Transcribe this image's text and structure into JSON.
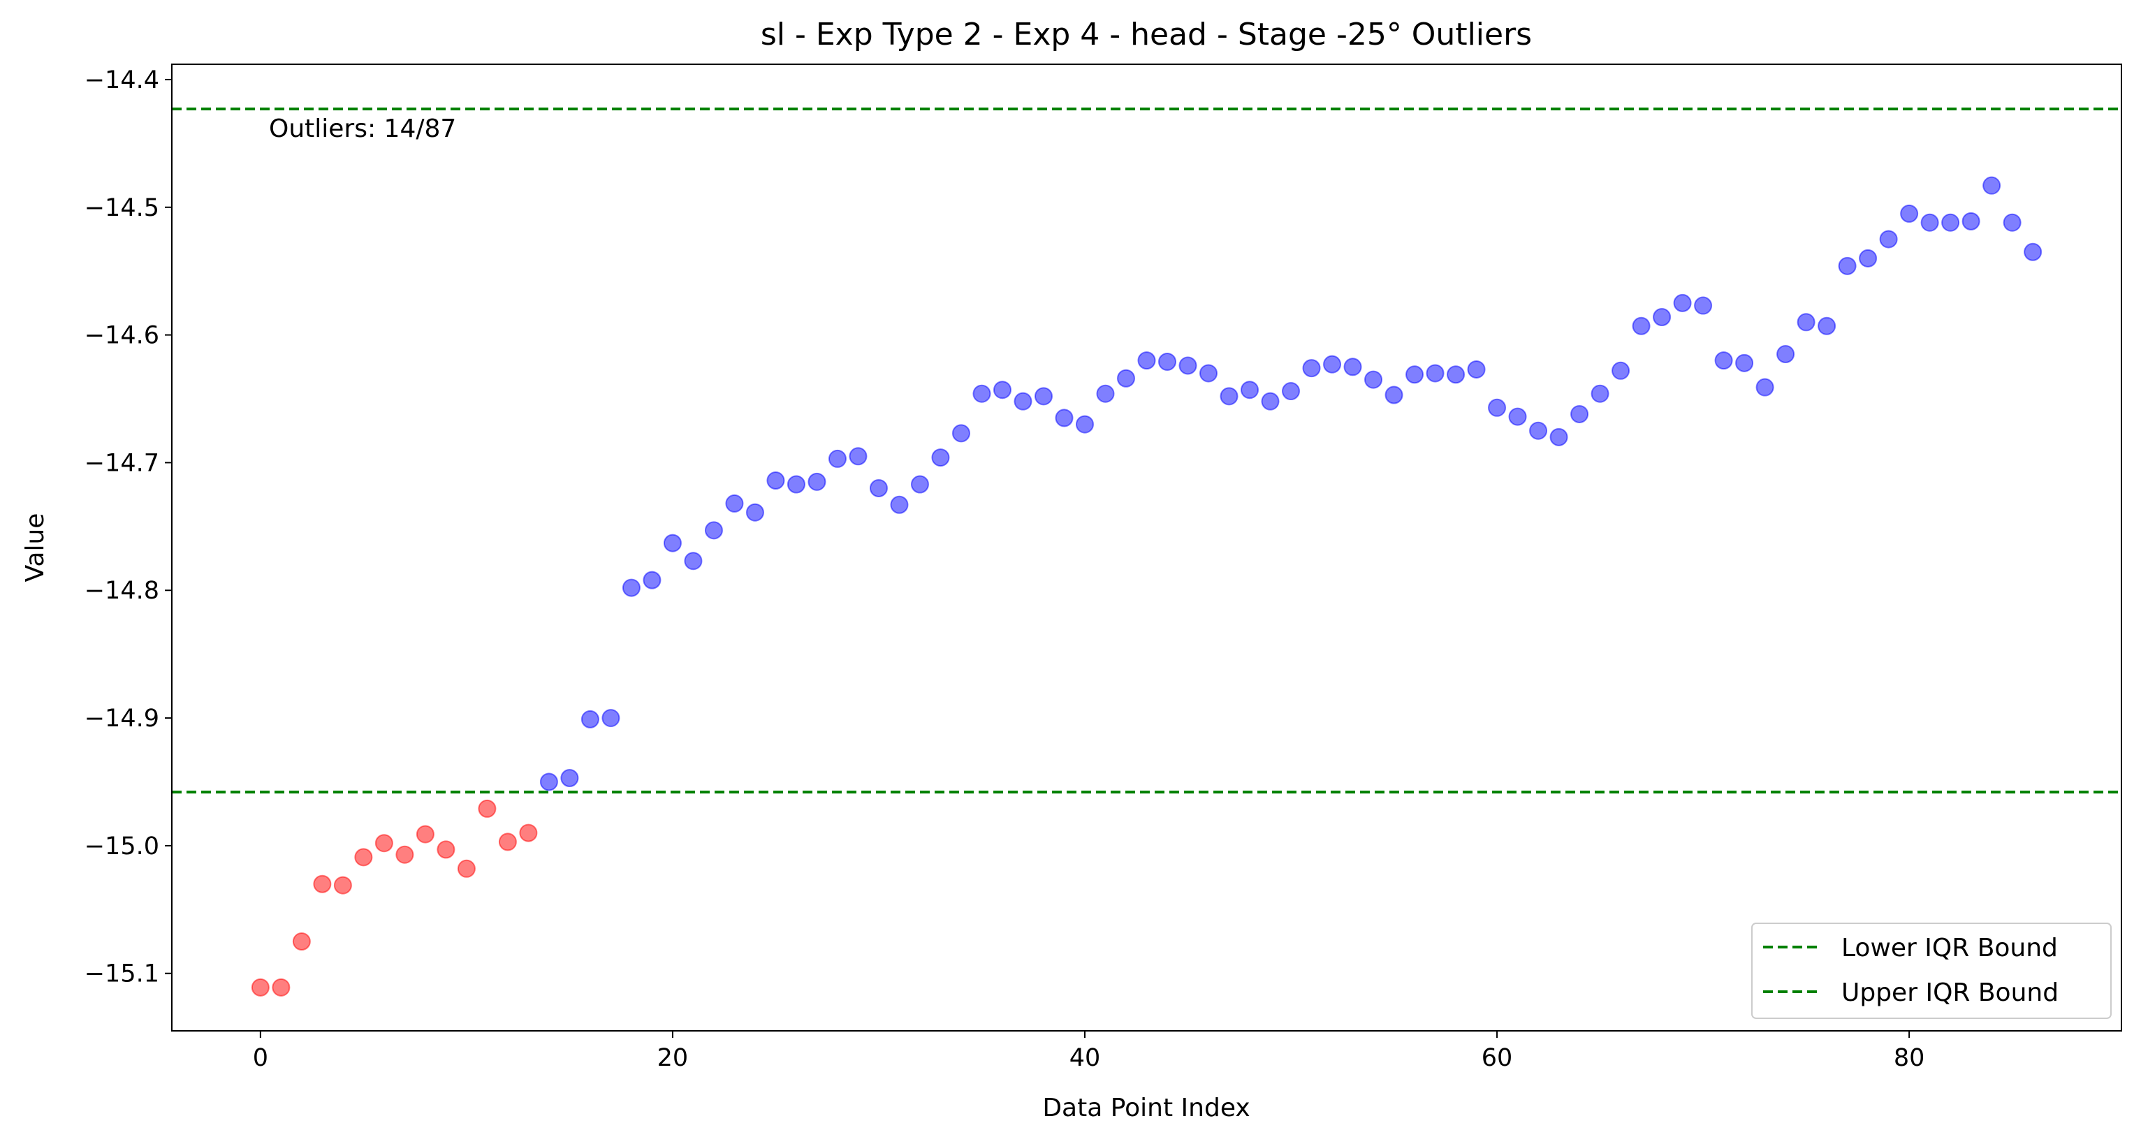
{
  "chart_data": {
    "type": "scatter",
    "title": "sl - Exp Type 2 - Exp 4 - head - Stage -25° Outliers",
    "xlabel": "Data Point Index",
    "ylabel": "Value",
    "xlim": [
      -4.3,
      90.3
    ],
    "ylim": [
      -15.145,
      -14.388
    ],
    "xticks": [
      0,
      20,
      40,
      60,
      80
    ],
    "yticks": [
      -15.1,
      -15.0,
      -14.9,
      -14.8,
      -14.7,
      -14.6,
      -14.5,
      -14.4
    ],
    "ytick_labels": [
      "−15.1",
      "−15.0",
      "−14.9",
      "−14.8",
      "−14.7",
      "−14.6",
      "−14.5",
      "−14.4"
    ],
    "annotation": "Outliers: 14/87",
    "lower_bound": -14.958,
    "upper_bound": -14.423,
    "grid": false,
    "legend_position": "lower right",
    "legend": [
      {
        "label": "Lower IQR Bound",
        "color": "#008000",
        "style": "dashed"
      },
      {
        "label": "Upper IQR Bound",
        "color": "#008000",
        "style": "dashed"
      }
    ],
    "colors": {
      "normal": "#0000ff",
      "outlier": "#ff0000",
      "bound": "#008000"
    },
    "series": [
      {
        "role": "outlier",
        "x": [
          0,
          1,
          2,
          3,
          4,
          5,
          6,
          7,
          8,
          9,
          10,
          11,
          12,
          13
        ],
        "y": [
          -15.111,
          -15.111,
          -15.075,
          -15.03,
          -15.031,
          -15.009,
          -14.998,
          -15.007,
          -14.991,
          -15.003,
          -15.018,
          -14.971,
          -14.997,
          -14.99
        ]
      },
      {
        "role": "normal",
        "x": [
          14,
          15,
          16,
          17,
          18,
          19,
          20,
          21,
          22,
          23,
          24,
          25,
          26,
          27,
          28,
          29,
          30,
          31,
          32,
          33,
          34,
          35,
          36,
          37,
          38,
          39,
          40,
          41,
          42,
          43,
          44,
          45,
          46,
          47,
          48,
          49,
          50,
          51,
          52,
          53,
          54,
          55,
          56,
          57,
          58,
          59,
          60,
          61,
          62,
          63,
          64,
          65,
          66,
          67,
          68,
          69,
          70,
          71,
          72,
          73,
          74,
          75,
          76,
          77,
          78,
          79,
          80,
          81,
          82,
          83,
          84,
          85,
          86
        ],
        "y": [
          -14.95,
          -14.947,
          -14.901,
          -14.9,
          -14.798,
          -14.792,
          -14.763,
          -14.777,
          -14.753,
          -14.732,
          -14.739,
          -14.714,
          -14.717,
          -14.715,
          -14.697,
          -14.695,
          -14.72,
          -14.733,
          -14.717,
          -14.696,
          -14.677,
          -14.646,
          -14.643,
          -14.652,
          -14.648,
          -14.665,
          -14.67,
          -14.646,
          -14.634,
          -14.62,
          -14.621,
          -14.624,
          -14.63,
          -14.648,
          -14.643,
          -14.652,
          -14.644,
          -14.626,
          -14.623,
          -14.625,
          -14.635,
          -14.647,
          -14.631,
          -14.63,
          -14.631,
          -14.627,
          -14.657,
          -14.664,
          -14.675,
          -14.68,
          -14.662,
          -14.646,
          -14.628,
          -14.593,
          -14.586,
          -14.575,
          -14.577,
          -14.62,
          -14.622,
          -14.641,
          -14.615,
          -14.59,
          -14.593,
          -14.546,
          -14.54,
          -14.525,
          -14.505,
          -14.512,
          -14.512,
          -14.511,
          -14.483,
          -14.512,
          -14.535
        ]
      }
    ]
  }
}
